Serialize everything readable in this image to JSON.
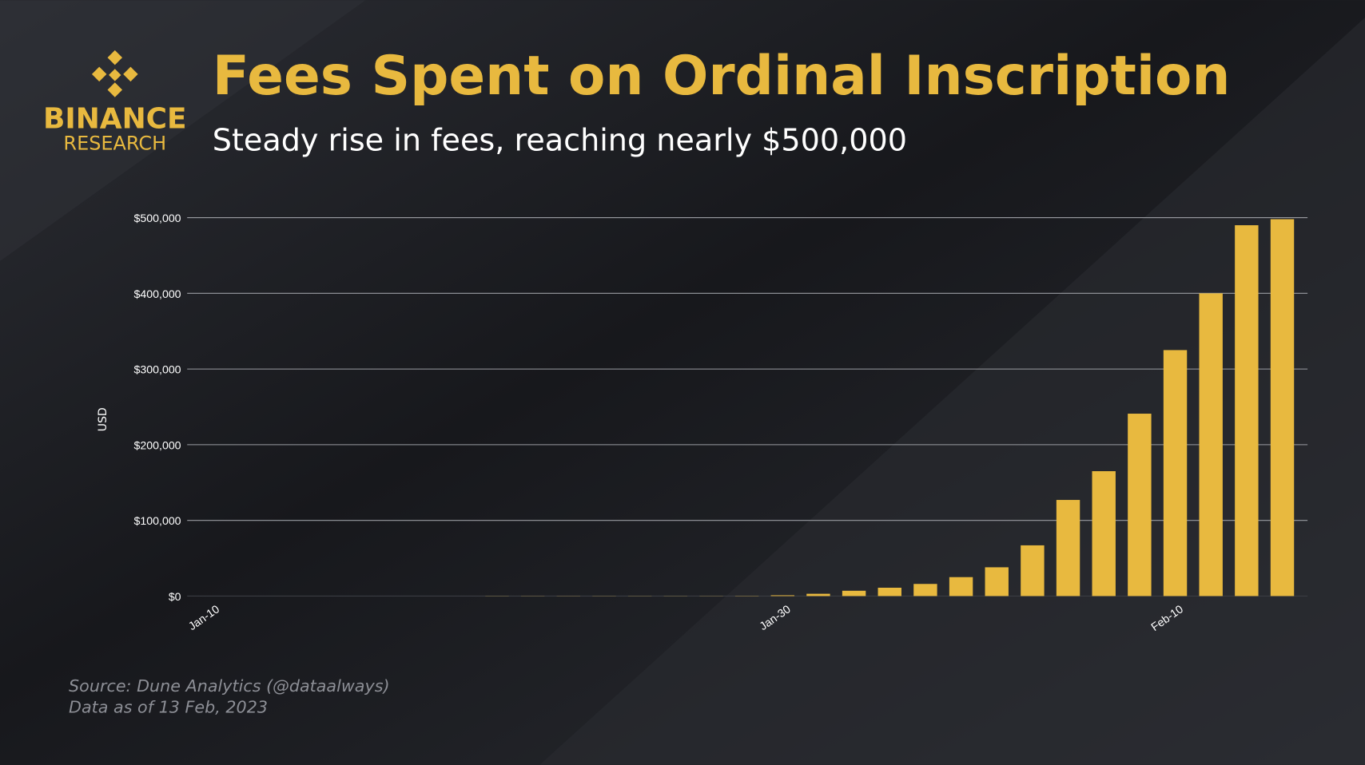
{
  "logo": {
    "line1": "BINANCE",
    "line2": "RESEARCH"
  },
  "chart_data": {
    "type": "bar",
    "title": "Fees Spent on Ordinal Inscription",
    "subtitle": "Steady rise in fees, reaching nearly $500,000",
    "y_label": "USD",
    "source": [
      "Source: Dune Analytics (@dataalways)",
      "Data as of 13 Feb, 2023"
    ],
    "categories": [
      "Jan-10",
      null,
      null,
      null,
      null,
      null,
      null,
      null,
      null,
      null,
      null,
      null,
      null,
      null,
      null,
      null,
      "Jan-30",
      null,
      null,
      null,
      null,
      null,
      null,
      null,
      null,
      null,
      null,
      "Feb-10",
      null,
      null,
      null
    ],
    "values": [
      0,
      0,
      0,
      0,
      0,
      0,
      0,
      0,
      200,
      200,
      200,
      200,
      200,
      200,
      200,
      300,
      1000,
      3000,
      7000,
      11000,
      16000,
      25000,
      38000,
      67000,
      127000,
      165000,
      241000,
      325000,
      400000,
      490000,
      498000
    ],
    "color": "#e8b93f",
    "ylim": [
      0,
      500000
    ],
    "yticks": [
      {
        "value": 0,
        "label": "$0"
      },
      {
        "value": 100000,
        "label": "$100,000"
      },
      {
        "value": 200000,
        "label": "$200,000"
      },
      {
        "value": 300000,
        "label": "$300,000"
      },
      {
        "value": 400000,
        "label": "$400,000"
      },
      {
        "value": 500000,
        "label": "$500,000"
      }
    ],
    "grid": true
  }
}
